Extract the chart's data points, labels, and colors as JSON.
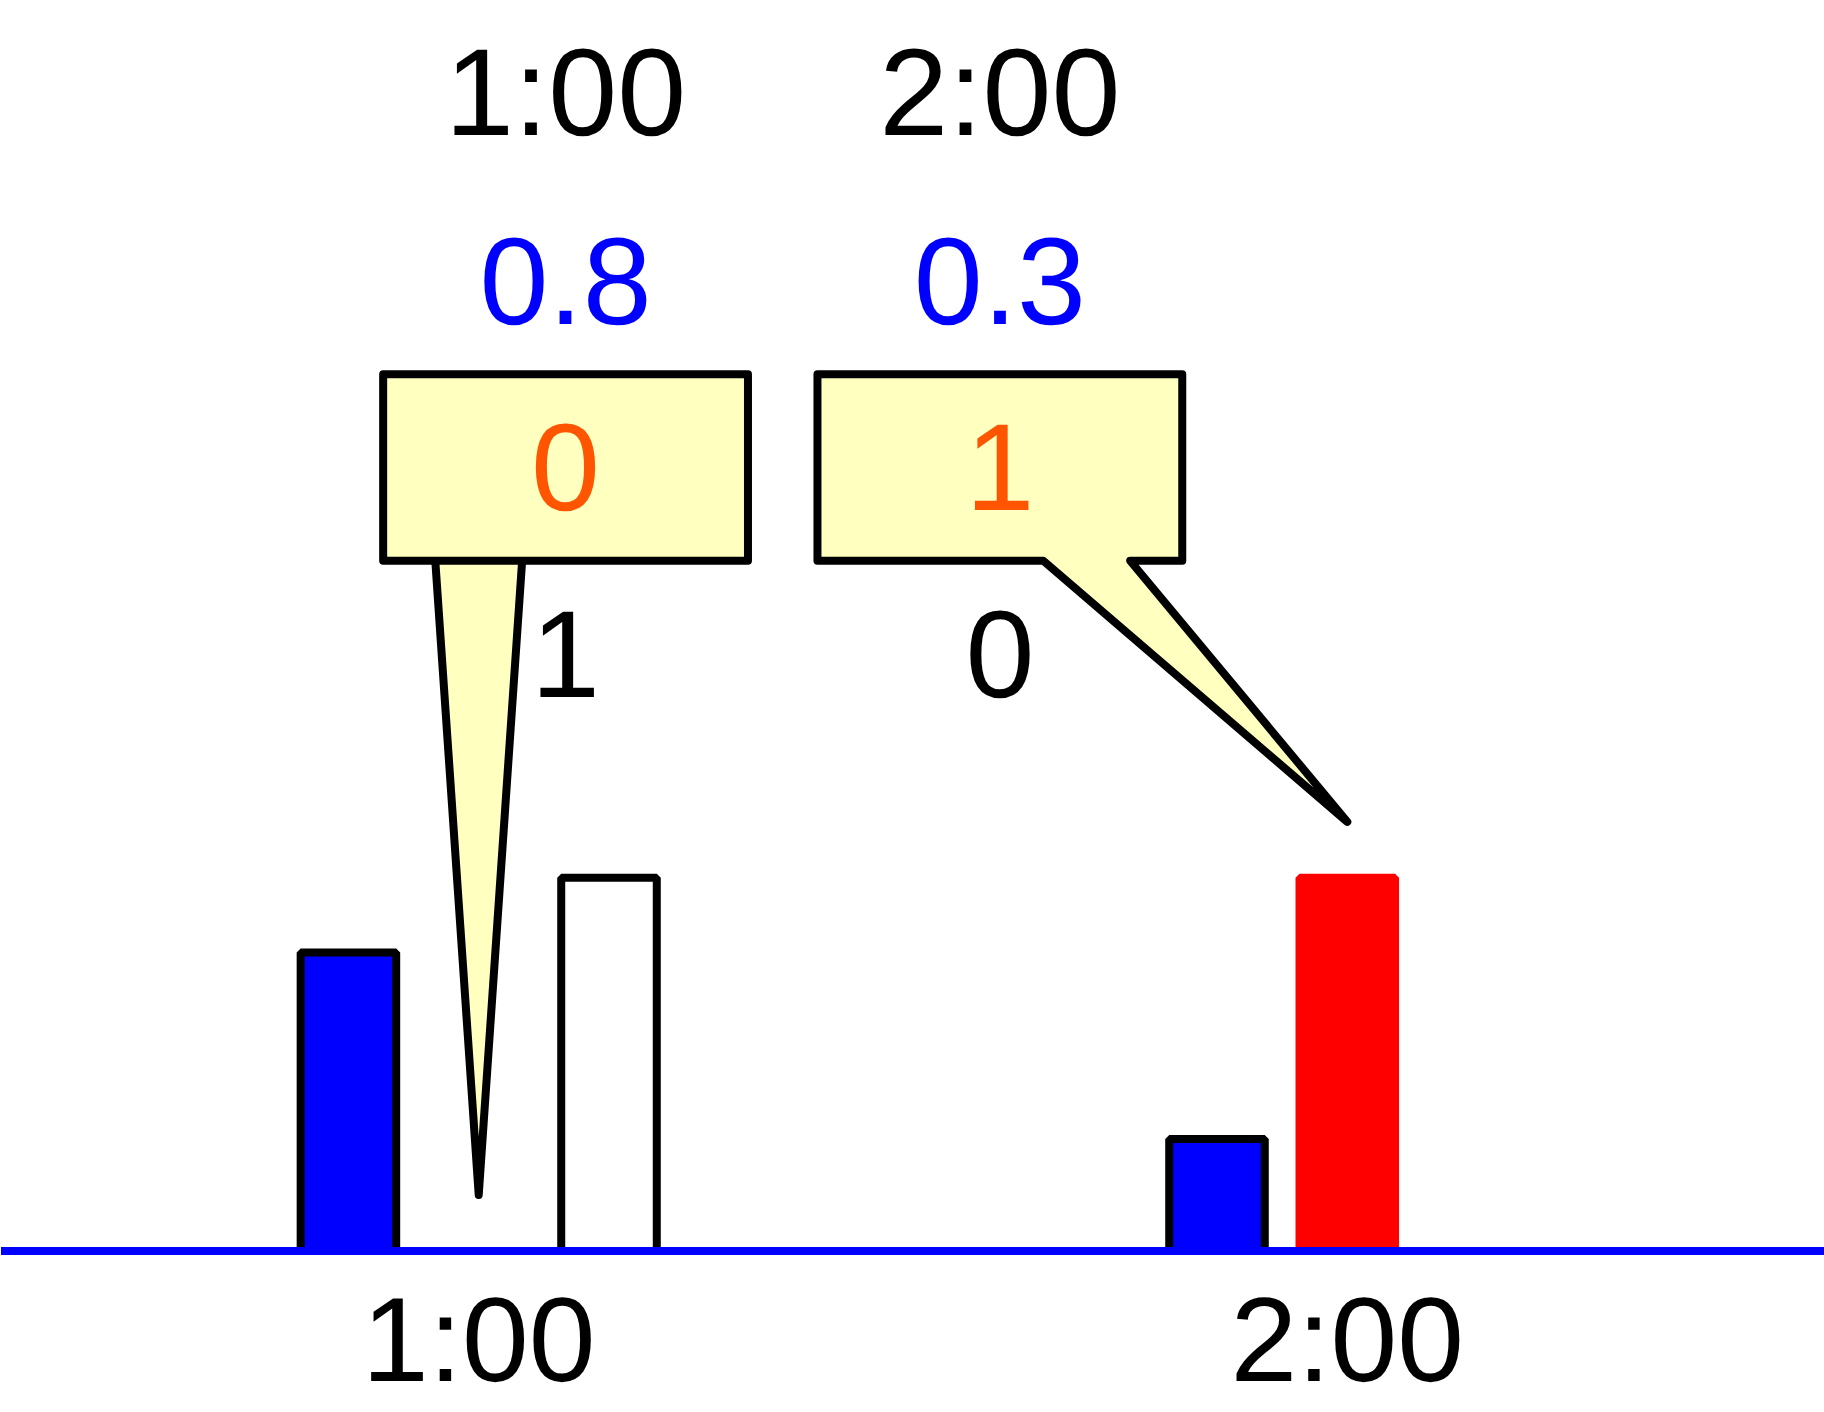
{
  "chart_data": {
    "type": "bar",
    "categories": [
      "1:00",
      "2:00"
    ],
    "series": [
      {
        "color": "#0000ff",
        "values": [
          0.8,
          0.3
        ]
      },
      {
        "color": "#ff0000",
        "values": [
          0,
          1
        ]
      },
      {
        "color": "#ffffff",
        "values": [
          1,
          0
        ]
      }
    ],
    "data_labels": true,
    "grid": false
  }
}
